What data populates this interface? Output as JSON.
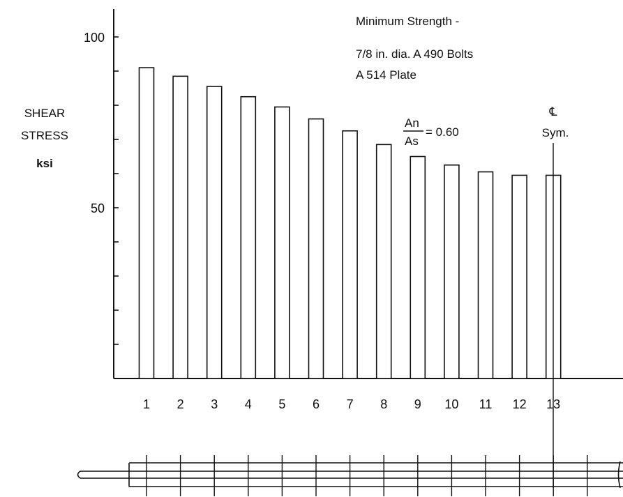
{
  "chart_data": {
    "type": "bar",
    "categories": [
      "1",
      "2",
      "3",
      "4",
      "5",
      "6",
      "7",
      "8",
      "9",
      "10",
      "11",
      "12",
      "13"
    ],
    "values": [
      91,
      88.5,
      85.5,
      82.5,
      79.5,
      76,
      72.5,
      68.5,
      65,
      62.5,
      60.5,
      59.5,
      59.5
    ],
    "ylabel_lines": [
      "SHEAR",
      "STRESS",
      "ksi"
    ],
    "yticks": [
      "100",
      "50"
    ],
    "ylim": [
      0,
      100
    ],
    "annotations": {
      "title_line1": "Minimum  Strength -",
      "title_line2": "7/8 in. dia.  A 490  Bolts",
      "title_line3": "A 514  Plate",
      "ratio_numerator": "An",
      "ratio_denominator": "As",
      "ratio_value": "= 0.60",
      "centerline_symbol": "℄",
      "centerline_label": "Sym."
    },
    "grid": false,
    "bar_fill": "#ffffff",
    "line_color": "#111111"
  }
}
